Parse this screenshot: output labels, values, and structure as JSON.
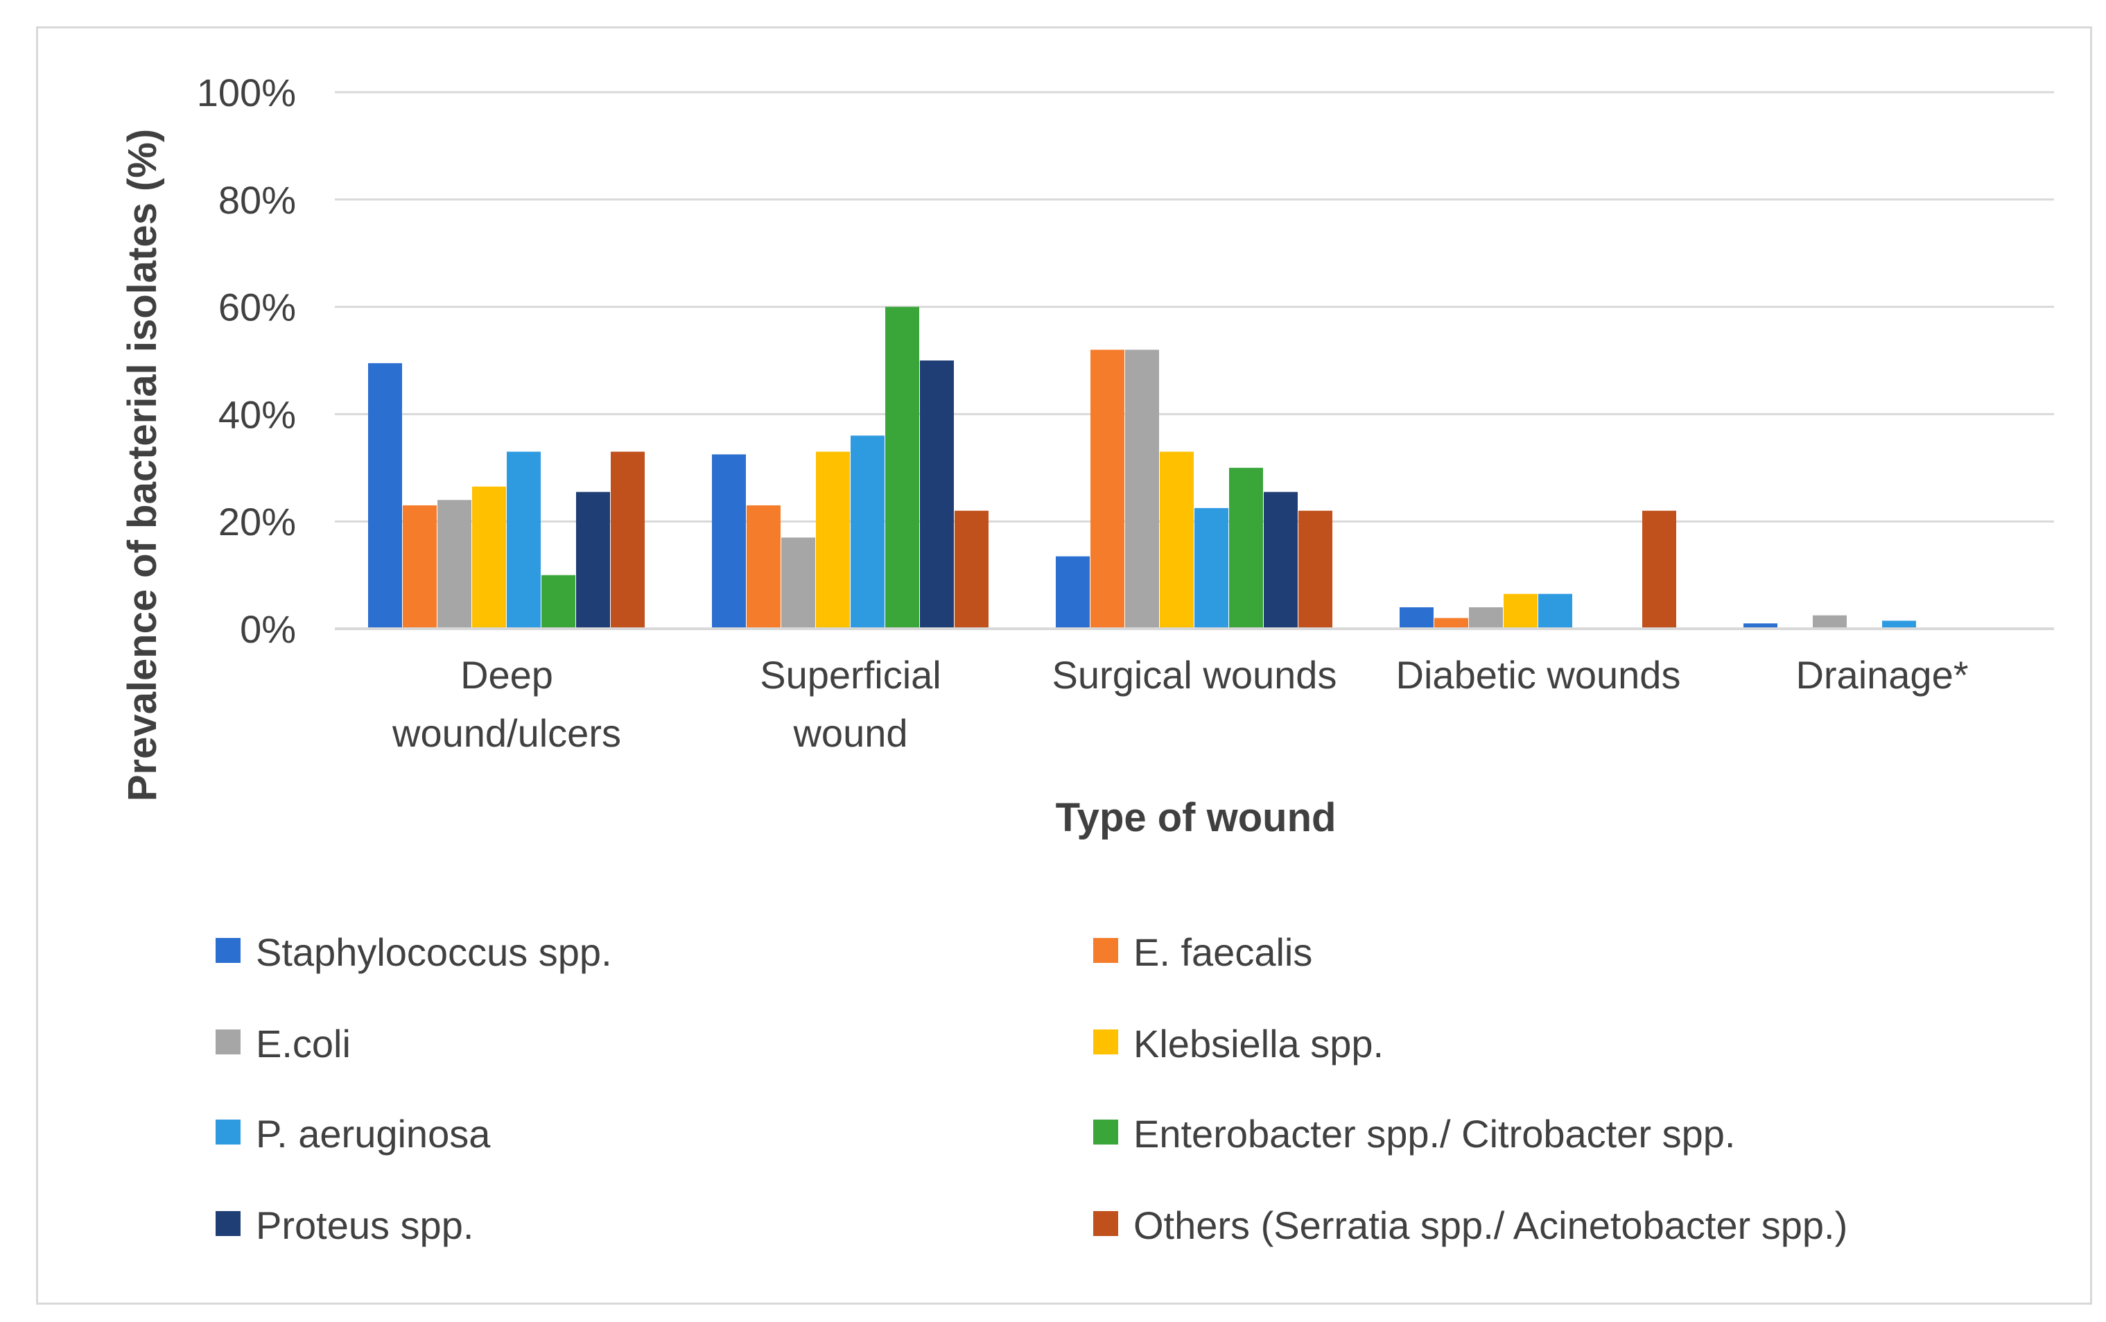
{
  "chart_data": {
    "type": "bar",
    "title": "",
    "xlabel": "Type of wound",
    "ylabel": "Prevalence of bacterial isolates (%)",
    "ylim": [
      0,
      100
    ],
    "yticks": [
      0,
      20,
      40,
      60,
      80,
      100
    ],
    "ytick_labels": [
      "0%",
      "20%",
      "40%",
      "60%",
      "80%",
      "100%"
    ],
    "grid": true,
    "legend_position": "bottom",
    "categories": [
      [
        "Deep",
        "wound/ulcers"
      ],
      [
        "Superficial",
        "wound"
      ],
      [
        "Surgical  wounds"
      ],
      [
        "Diabetic wounds"
      ],
      [
        "Drainage*"
      ]
    ],
    "series": [
      {
        "name": "Staphylococcus spp.",
        "color": "#2b6fd0",
        "values": [
          49.5,
          32.5,
          13.5,
          4,
          1
        ]
      },
      {
        "name": "E. faecalis",
        "color": "#f47c2a",
        "values": [
          23,
          23,
          52,
          2,
          0
        ]
      },
      {
        "name": "E.coli",
        "color": "#a6a6a6",
        "values": [
          24,
          17,
          52,
          4,
          2.5
        ]
      },
      {
        "name": "Klebsiella spp.",
        "color": "#ffc000",
        "values": [
          26.5,
          33,
          33,
          6.5,
          0
        ]
      },
      {
        "name": "P. aeruginosa",
        "color": "#2e9be0",
        "values": [
          33,
          36,
          22.5,
          6.5,
          1.5
        ]
      },
      {
        "name": "Enterobacter spp./ Citrobacter spp.",
        "color": "#3aa63a",
        "values": [
          10,
          60,
          30,
          0,
          0
        ]
      },
      {
        "name": "Proteus spp.",
        "color": "#1f3e75",
        "values": [
          25.5,
          50,
          25.5,
          0,
          0
        ]
      },
      {
        "name": "Others (Serratia spp./ Acinetobacter spp.)",
        "color": "#c0501c",
        "values": [
          33,
          22,
          22,
          22,
          0
        ]
      }
    ]
  }
}
